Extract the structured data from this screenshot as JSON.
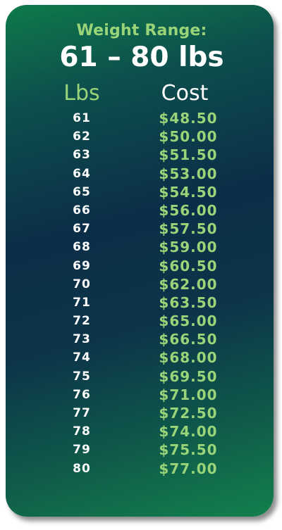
{
  "header": {
    "subtitle": "Weight Range:",
    "title": "61 – 80 lbs"
  },
  "columns": {
    "lbs": "Lbs",
    "cost": "Cost"
  },
  "rows": [
    {
      "lbs": "61",
      "cost": "$48.50"
    },
    {
      "lbs": "62",
      "cost": "$50.00"
    },
    {
      "lbs": "63",
      "cost": "$51.50"
    },
    {
      "lbs": "64",
      "cost": "$53.00"
    },
    {
      "lbs": "65",
      "cost": "$54.50"
    },
    {
      "lbs": "66",
      "cost": "$56.00"
    },
    {
      "lbs": "67",
      "cost": "$57.50"
    },
    {
      "lbs": "68",
      "cost": "$59.00"
    },
    {
      "lbs": "69",
      "cost": "$60.50"
    },
    {
      "lbs": "70",
      "cost": "$62.00"
    },
    {
      "lbs": "71",
      "cost": "$63.50"
    },
    {
      "lbs": "72",
      "cost": "$65.00"
    },
    {
      "lbs": "73",
      "cost": "$66.50"
    },
    {
      "lbs": "74",
      "cost": "$68.00"
    },
    {
      "lbs": "75",
      "cost": "$69.50"
    },
    {
      "lbs": "76",
      "cost": "$71.00"
    },
    {
      "lbs": "77",
      "cost": "$72.50"
    },
    {
      "lbs": "78",
      "cost": "$74.00"
    },
    {
      "lbs": "79",
      "cost": "$75.50"
    },
    {
      "lbs": "80",
      "cost": "$77.00"
    }
  ],
  "colors": {
    "accent_green": "#9ad479",
    "text_white": "#ffffff",
    "card_dark": "#0b2e48",
    "card_green": "#13804c"
  }
}
